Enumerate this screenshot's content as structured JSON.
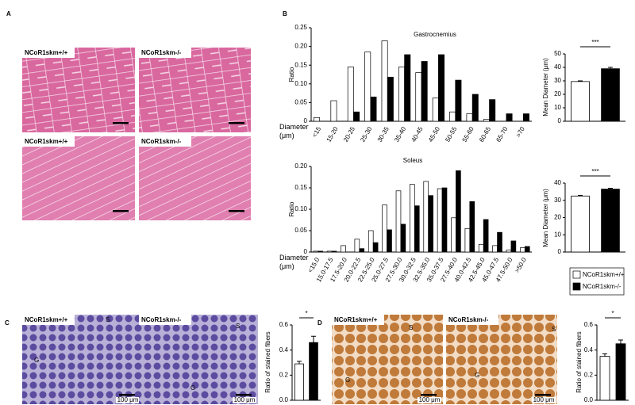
{
  "panels": {
    "A": {
      "label": "A",
      "images": [
        {
          "caption": "NCoR1skm+/+"
        },
        {
          "caption": "NCoR1skm-/-"
        },
        {
          "caption": "NCoR1skm+/+"
        },
        {
          "caption": "NCoR1skm-/-"
        }
      ]
    },
    "B": {
      "label": "B"
    },
    "C": {
      "label": "C",
      "images": [
        {
          "caption": "NCoR1skm+/+",
          "marks": [
            "S",
            "G"
          ],
          "scale": "100 μm"
        },
        {
          "caption": "NCoR1skm-/-",
          "marks": [
            "S",
            "G"
          ],
          "scale": "100 μm"
        }
      ]
    },
    "D": {
      "label": "D",
      "images": [
        {
          "caption": "NCoR1skm+/+",
          "marks": [
            "S",
            "G"
          ],
          "scale": "100 μm"
        },
        {
          "caption": "NCoR1skm-/-",
          "marks": [
            "S",
            "G"
          ],
          "scale": "100 μm"
        }
      ]
    }
  },
  "chart_data": [
    {
      "type": "bar",
      "title": "Gastrocnemius",
      "y_label": "Ratio",
      "x_label": "Diameter (μm)",
      "legend": "bottom right",
      "categories": [
        "<15",
        "15-20",
        "20-25",
        "25-30",
        "30-35",
        "35-40",
        "40-45",
        "45-50",
        "50-55",
        "55-60",
        "60-65",
        "65-70",
        ">70"
      ],
      "series": [
        {
          "name": "NCoR1skm+/+",
          "color": "#ffffff",
          "values": [
            0.01,
            0.055,
            0.145,
            0.185,
            0.215,
            0.145,
            0.13,
            0.062,
            0.025,
            0.02,
            0.005,
            0,
            0
          ]
        },
        {
          "name": "NCoR1skm-/-",
          "color": "#000000",
          "values": [
            0,
            0,
            0.025,
            0.065,
            0.118,
            0.178,
            0.16,
            0.178,
            0.11,
            0.072,
            0.058,
            0.02,
            0.02
          ]
        }
      ],
      "ylim": [
        0,
        0.25
      ],
      "yticks": [
        0,
        0.05,
        {
          "value": 0.1,
          "label": "0.10"
        },
        0.15,
        {
          "value": 0.2,
          "label": "0.20"
        },
        0.25
      ]
    },
    {
      "type": "bar",
      "y_label": "Mean Diameter (μm)",
      "annotation": "***",
      "values": [
        29.5,
        39
      ],
      "errors": [
        0.5,
        1
      ],
      "colors": [
        "#ffffff",
        "#000000"
      ],
      "ylim": [
        0,
        50
      ],
      "yticks": [
        0,
        10,
        20,
        30,
        40,
        50
      ]
    },
    {
      "type": "bar",
      "title": "Soleus",
      "y_label": "Ratio",
      "x_label": "Diameter (μm)",
      "categories": [
        "<15.0",
        "15.0-17.5",
        "17.5-20.0",
        "20.0-22.5",
        "22.5-25.0",
        "25.0-27.5",
        "27.5-30.0",
        "30.0-32.5",
        "32.5-35.0",
        "35.0-37.5",
        "27.5-40.0",
        "40.0-42.5",
        "42.5-45.0",
        "45.0-47.5",
        "47.5-50.0",
        ">50.0"
      ],
      "series": [
        {
          "color": "#ffffff",
          "values": [
            0.002,
            0.002,
            0.015,
            0.03,
            0.05,
            0.11,
            0.143,
            0.158,
            0.165,
            0.148,
            0.08,
            0.055,
            0.018,
            0.015,
            0.005,
            0.01
          ]
        },
        {
          "color": "#000000",
          "values": [
            0.002,
            0.002,
            0,
            0.008,
            0.022,
            0.052,
            0.065,
            0.108,
            0.132,
            0.15,
            0.19,
            0.118,
            0.076,
            0.046,
            0.026,
            0.013
          ]
        }
      ],
      "ylim": [
        0,
        0.2
      ],
      "yticks": [
        0,
        0.05,
        {
          "value": 0.1,
          "label": "0.10"
        },
        0.15,
        {
          "value": 0.2,
          "label": "0.20"
        }
      ]
    },
    {
      "type": "bar",
      "y_label": "Mean Diameter (μm)",
      "annotation": "***",
      "values": [
        32.5,
        36.5
      ],
      "errors": [
        0.4,
        0.5
      ],
      "colors": [
        "#ffffff",
        "#000000"
      ],
      "ylim": [
        0,
        40
      ],
      "yticks": [
        0,
        10,
        20,
        30,
        40
      ]
    },
    {
      "type": "bar",
      "y_label": "Ratio of stained fibers",
      "annotation": "*",
      "values": [
        0.29,
        0.46
      ],
      "errors": [
        0.02,
        0.05
      ],
      "colors": [
        "#ffffff",
        "#000000"
      ],
      "ylim": [
        0,
        0.6
      ],
      "yticks": [
        {
          "value": 0,
          "label": "0.0"
        },
        0.2,
        0.4,
        0.6
      ]
    },
    {
      "type": "bar",
      "y_label": "Ratio of stained fibers",
      "annotation": "*",
      "values": [
        0.35,
        0.45
      ],
      "errors": [
        0.02,
        0.03
      ],
      "colors": [
        "#ffffff",
        "#000000"
      ],
      "ylim": [
        0,
        0.6
      ],
      "yticks": [
        {
          "value": 0,
          "label": "0.0"
        },
        0.2,
        0.4,
        0.6
      ]
    }
  ]
}
